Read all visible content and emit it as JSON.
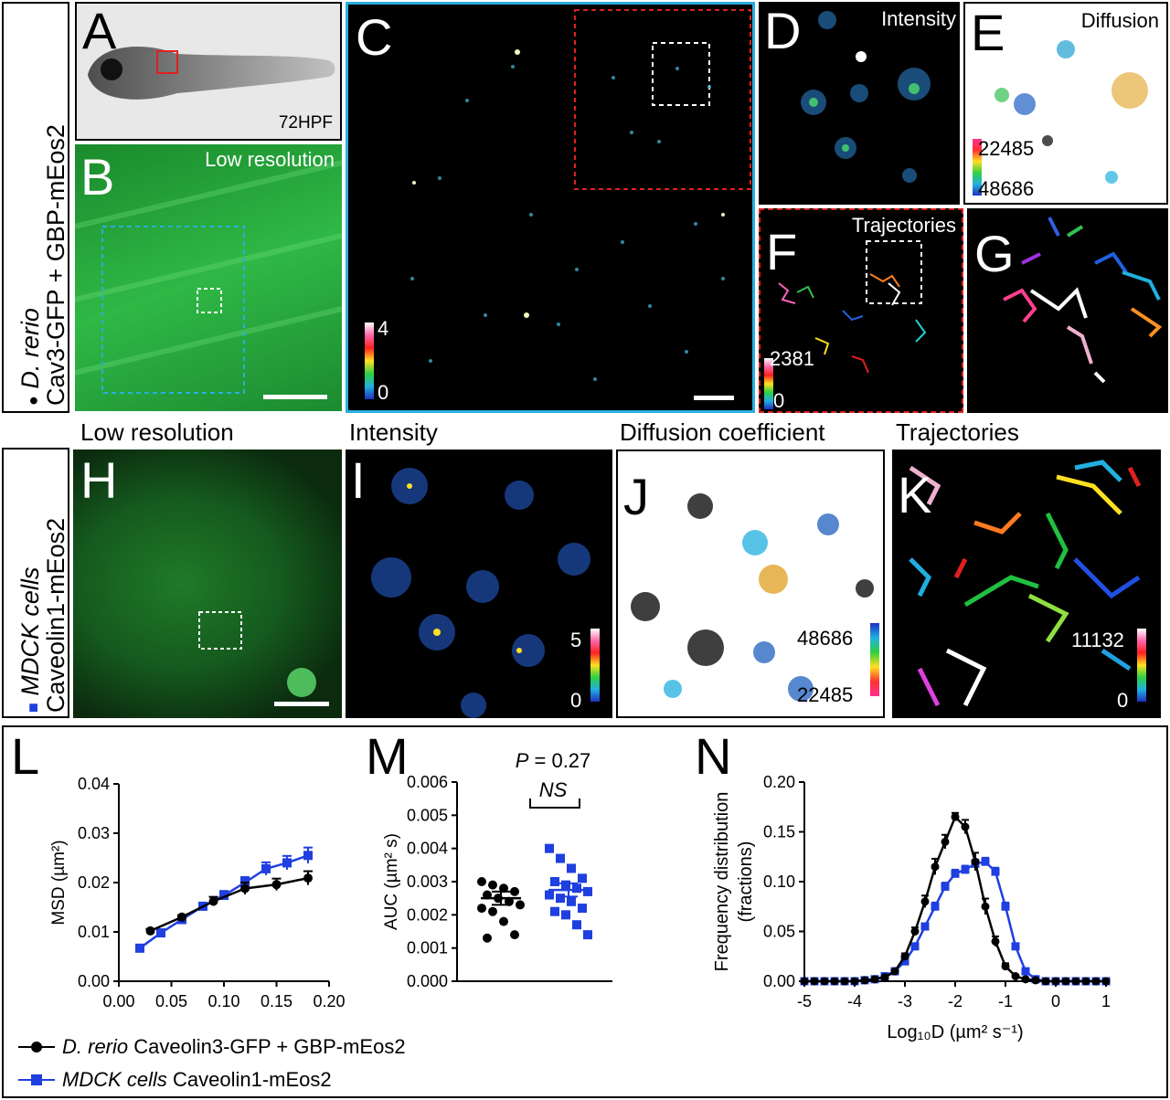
{
  "top_row": {
    "side_label": {
      "species": "D. rerio",
      "construct": "Cav3-GFP + GBP-mEos2"
    },
    "panels": {
      "A": {
        "letter": "A",
        "caption": "72HPF"
      },
      "B": {
        "letter": "B",
        "caption": "Low resolution"
      },
      "C": {
        "letter": "C",
        "scale_max": "4",
        "scale_min": "0"
      },
      "D": {
        "letter": "D",
        "caption": "Intensity"
      },
      "E": {
        "letter": "E",
        "caption": "Diffusion",
        "scale_top": "22485",
        "scale_bottom": "48686"
      },
      "F": {
        "letter": "F",
        "caption": "Trajectories",
        "scale_max": "2381",
        "scale_min": "0"
      },
      "G": {
        "letter": "G"
      }
    }
  },
  "middle_row": {
    "side_label": {
      "cells": "MDCK cells",
      "construct": "Caveolin1-mEos2"
    },
    "titles": {
      "low_res": "Low resolution",
      "intensity": "Intensity",
      "diffusion": "Diffusion coefficient",
      "trajectories": "Trajectories"
    },
    "panels": {
      "H": {
        "letter": "H"
      },
      "I": {
        "letter": "I",
        "scale_max": "5",
        "scale_min": "0"
      },
      "J": {
        "letter": "J",
        "scale_top": "48686",
        "scale_bottom": "22485"
      },
      "K": {
        "letter": "K",
        "scale_max": "11132",
        "scale_min": "0"
      }
    }
  },
  "colors": {
    "zebrafish": "#000000",
    "mdck": "#1f3fe0",
    "green_field": "#22a83a",
    "dashed_blue": "#29aee0",
    "dashed_red": "#e02020"
  },
  "chart_data": [
    {
      "panel": "L",
      "type": "line",
      "xlabel": "",
      "ylabel": "MSD (µm²)",
      "xlim": [
        0.0,
        0.2
      ],
      "ylim": [
        0.0,
        0.04
      ],
      "xticks": [
        "0.00",
        "0.05",
        "0.10",
        "0.15",
        "0.20"
      ],
      "yticks": [
        "0.00",
        "0.01",
        "0.02",
        "0.03",
        "0.04"
      ],
      "series": [
        {
          "name": "D. rerio Caveolin3-GFP + GBP-mEos2",
          "color": "#000000",
          "marker": "circle",
          "x": [
            0.03,
            0.06,
            0.09,
            0.12,
            0.15,
            0.18
          ],
          "y": [
            0.0102,
            0.013,
            0.0162,
            0.0188,
            0.0196,
            0.0209
          ],
          "err": [
            0.0004,
            0.0004,
            0.0009,
            0.0012,
            0.0012,
            0.0014
          ]
        },
        {
          "name": "MDCK cells Caveolin1-mEos2",
          "color": "#1f3fe0",
          "marker": "square",
          "x": [
            0.02,
            0.04,
            0.06,
            0.08,
            0.1,
            0.12,
            0.14,
            0.16,
            0.18
          ],
          "y": [
            0.0067,
            0.0098,
            0.0125,
            0.0152,
            0.0174,
            0.02,
            0.0228,
            0.024,
            0.0255
          ],
          "err": [
            0.0003,
            0.0004,
            0.0005,
            0.0007,
            0.0009,
            0.0011,
            0.0013,
            0.0014,
            0.0016
          ]
        }
      ]
    },
    {
      "panel": "M",
      "type": "scatter",
      "ylabel": "AUC (µm² s)",
      "ylim": [
        0.0,
        0.006
      ],
      "yticks": [
        "0.000",
        "0.001",
        "0.002",
        "0.003",
        "0.004",
        "0.005",
        "0.006"
      ],
      "annotation_p": "P = 0.27",
      "annotation_ns": "NS",
      "series": [
        {
          "name": "D. rerio",
          "color": "#000000",
          "marker": "circle",
          "mean": 0.0025,
          "sem": 0.0002,
          "values": [
            0.0029,
            0.0028,
            0.0027,
            0.003,
            0.0026,
            0.0025,
            0.0024,
            0.0023,
            0.0022,
            0.0021,
            0.0018,
            0.0014,
            0.0013
          ]
        },
        {
          "name": "MDCK",
          "color": "#1f3fe0",
          "marker": "square",
          "mean": 0.00275,
          "sem": 0.0002,
          "values": [
            0.004,
            0.0037,
            0.0034,
            0.0031,
            0.003,
            0.0029,
            0.0028,
            0.0027,
            0.0026,
            0.0025,
            0.0024,
            0.0022,
            0.0021,
            0.002,
            0.0017,
            0.0014
          ]
        }
      ]
    },
    {
      "panel": "N",
      "type": "line",
      "xlabel": "Log₁₀D (µm² s⁻¹)",
      "ylabel": "Frequency distribution (fractions)",
      "xlim": [
        -5,
        1
      ],
      "ylim": [
        0.0,
        0.2
      ],
      "xticks": [
        "-5",
        "-4",
        "-3",
        "-2",
        "-1",
        "0",
        "1"
      ],
      "yticks": [
        "0.00",
        "0.05",
        "0.10",
        "0.15",
        "0.20"
      ],
      "series": [
        {
          "name": "D. rerio",
          "color": "#000000",
          "marker": "circle",
          "x": [
            -5.0,
            -4.8,
            -4.6,
            -4.4,
            -4.2,
            -4.0,
            -3.8,
            -3.6,
            -3.4,
            -3.2,
            -3.0,
            -2.8,
            -2.6,
            -2.4,
            -2.2,
            -2.0,
            -1.8,
            -1.6,
            -1.4,
            -1.2,
            -1.0,
            -0.8,
            -0.6,
            -0.4,
            -0.2,
            0.0,
            0.2,
            0.4,
            0.6,
            0.8,
            1.0
          ],
          "y": [
            0,
            0,
            0,
            0,
            0,
            0,
            0.001,
            0.002,
            0.004,
            0.01,
            0.025,
            0.05,
            0.08,
            0.115,
            0.14,
            0.165,
            0.155,
            0.12,
            0.075,
            0.04,
            0.015,
            0.005,
            0.002,
            0.001,
            0,
            0,
            0,
            0,
            0,
            0,
            0
          ],
          "err": [
            0,
            0,
            0,
            0,
            0,
            0,
            0,
            0,
            0,
            0.001,
            0.003,
            0.004,
            0.006,
            0.008,
            0.007,
            0.004,
            0.007,
            0.009,
            0.008,
            0.005,
            0.003,
            0,
            0,
            0,
            0,
            0,
            0,
            0,
            0,
            0,
            0
          ]
        },
        {
          "name": "MDCK",
          "color": "#1f3fe0",
          "marker": "square",
          "x": [
            -5.0,
            -4.8,
            -4.6,
            -4.4,
            -4.2,
            -4.0,
            -3.8,
            -3.6,
            -3.4,
            -3.2,
            -3.0,
            -2.8,
            -2.6,
            -2.4,
            -2.2,
            -2.0,
            -1.8,
            -1.6,
            -1.4,
            -1.2,
            -1.0,
            -0.8,
            -0.6,
            -0.4,
            -0.2,
            0.0,
            0.2,
            0.4,
            0.6,
            0.8,
            1.0
          ],
          "y": [
            0,
            0,
            0,
            0,
            0,
            0,
            0.001,
            0.002,
            0.005,
            0.01,
            0.02,
            0.035,
            0.055,
            0.075,
            0.095,
            0.108,
            0.112,
            0.118,
            0.12,
            0.11,
            0.075,
            0.035,
            0.01,
            0.002,
            0,
            0,
            0,
            0,
            0,
            0,
            0
          ],
          "err": [
            0,
            0,
            0,
            0,
            0,
            0,
            0,
            0,
            0,
            0.001,
            0.002,
            0.003,
            0.003,
            0.004,
            0.004,
            0.004,
            0.004,
            0.004,
            0.004,
            0.004,
            0.004,
            0.003,
            0.001,
            0,
            0,
            0,
            0,
            0,
            0,
            0,
            0
          ]
        }
      ]
    }
  ],
  "plot_labels": {
    "L": "L",
    "M": "M",
    "N": "N"
  },
  "legend": [
    {
      "species": "D. rerio",
      "rest": " Caveolin3-GFP + GBP-mEos2",
      "color": "#000000",
      "marker": "circle"
    },
    {
      "species": "MDCK cells",
      "rest": " Caveolin1-mEos2",
      "color": "#1f3fe0",
      "marker": "square"
    }
  ]
}
